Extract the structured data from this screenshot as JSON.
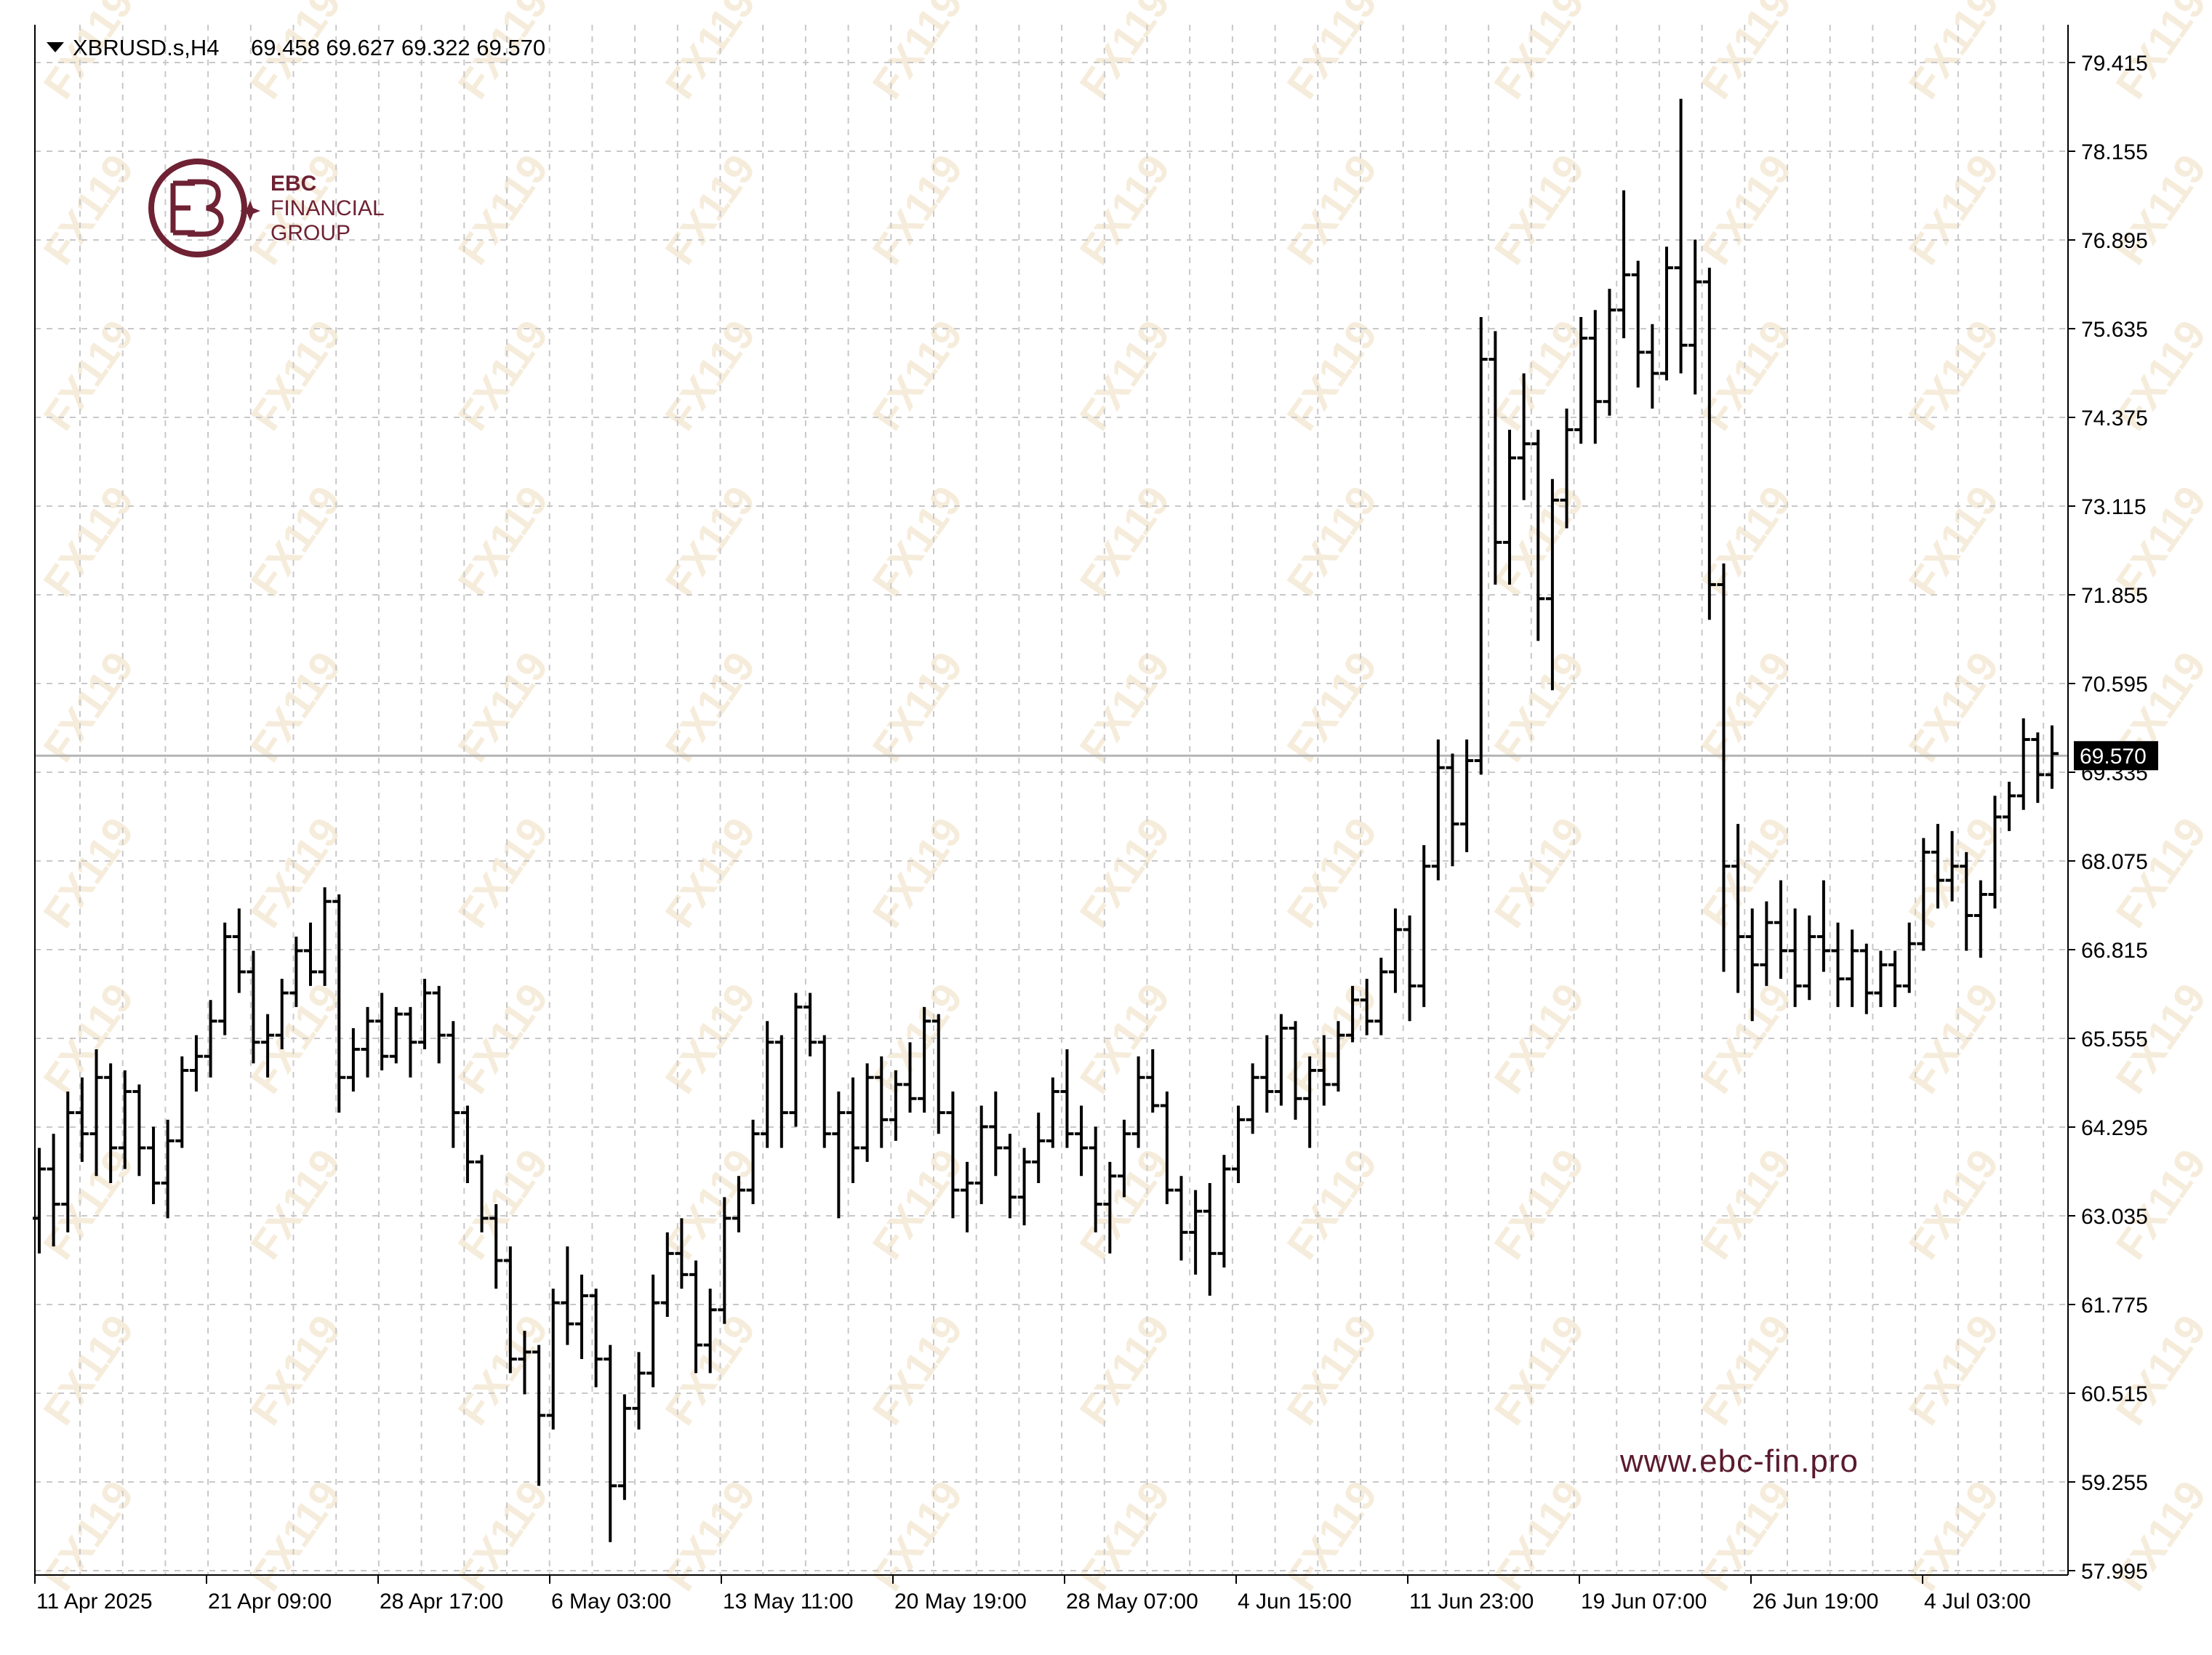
{
  "header": {
    "symbol": "XBRUSD.s,H4",
    "ohlc": "69.458 69.627 69.322 69.570"
  },
  "logo": {
    "line1": "EBC",
    "line2": "FINANCIAL",
    "line3": "GROUP"
  },
  "website": "www.ebc-fin.pro",
  "watermark_text": "FX119",
  "colors": {
    "bars": "#000000",
    "grid": "#c8c8c8",
    "price_line": "#b4b4b4",
    "brand": "#6e2234",
    "watermark": "#f3e6cf"
  },
  "chart_data": {
    "type": "ohlc-bar",
    "symbol": "XBRUSD.s",
    "timeframe": "H4",
    "y_ticks": [
      "79.415",
      "78.155",
      "76.895",
      "75.635",
      "74.375",
      "73.115",
      "71.855",
      "70.595",
      "69.335",
      "68.075",
      "66.815",
      "65.555",
      "64.295",
      "63.035",
      "61.775",
      "60.515",
      "59.255",
      "57.995"
    ],
    "ylim": [
      57.995,
      79.415
    ],
    "x_ticks": [
      "11 Apr 2025",
      "21 Apr 09:00",
      "28 Apr 17:00",
      "6 May 03:00",
      "13 May 11:00",
      "20 May 19:00",
      "28 May 07:00",
      "4 Jun 15:00",
      "11 Jun 23:00",
      "19 Jun 07:00",
      "26 Jun 19:00",
      "4 Jul 03:00"
    ],
    "current_price": "69.570",
    "bars": [
      {
        "o": 63.0,
        "h": 64.0,
        "l": 62.5,
        "c": 63.7
      },
      {
        "o": 63.7,
        "h": 64.2,
        "l": 62.6,
        "c": 63.2
      },
      {
        "o": 63.2,
        "h": 64.8,
        "l": 62.8,
        "c": 64.5
      },
      {
        "o": 64.5,
        "h": 65.0,
        "l": 63.8,
        "c": 64.2
      },
      {
        "o": 64.2,
        "h": 65.4,
        "l": 63.6,
        "c": 65.0
      },
      {
        "o": 65.0,
        "h": 65.2,
        "l": 63.5,
        "c": 64.0
      },
      {
        "o": 64.0,
        "h": 65.1,
        "l": 63.7,
        "c": 64.8
      },
      {
        "o": 64.8,
        "h": 64.9,
        "l": 63.6,
        "c": 64.0
      },
      {
        "o": 64.0,
        "h": 64.3,
        "l": 63.2,
        "c": 63.5
      },
      {
        "o": 63.5,
        "h": 64.4,
        "l": 63.0,
        "c": 64.1
      },
      {
        "o": 64.1,
        "h": 65.3,
        "l": 64.0,
        "c": 65.1
      },
      {
        "o": 65.1,
        "h": 65.6,
        "l": 64.8,
        "c": 65.3
      },
      {
        "o": 65.3,
        "h": 66.1,
        "l": 65.0,
        "c": 65.8
      },
      {
        "o": 65.8,
        "h": 67.2,
        "l": 65.6,
        "c": 67.0
      },
      {
        "o": 67.0,
        "h": 67.4,
        "l": 66.2,
        "c": 66.5
      },
      {
        "o": 66.5,
        "h": 66.8,
        "l": 65.2,
        "c": 65.5
      },
      {
        "o": 65.5,
        "h": 65.9,
        "l": 65.0,
        "c": 65.6
      },
      {
        "o": 65.6,
        "h": 66.4,
        "l": 65.4,
        "c": 66.2
      },
      {
        "o": 66.2,
        "h": 67.0,
        "l": 66.0,
        "c": 66.8
      },
      {
        "o": 66.8,
        "h": 67.2,
        "l": 66.3,
        "c": 66.5
      },
      {
        "o": 66.5,
        "h": 67.7,
        "l": 66.3,
        "c": 67.5
      },
      {
        "o": 67.5,
        "h": 67.6,
        "l": 64.5,
        "c": 65.0
      },
      {
        "o": 65.0,
        "h": 65.7,
        "l": 64.8,
        "c": 65.4
      },
      {
        "o": 65.4,
        "h": 66.0,
        "l": 65.0,
        "c": 65.8
      },
      {
        "o": 65.8,
        "h": 66.2,
        "l": 65.1,
        "c": 65.3
      },
      {
        "o": 65.3,
        "h": 66.0,
        "l": 65.2,
        "c": 65.9
      },
      {
        "o": 65.9,
        "h": 66.0,
        "l": 65.0,
        "c": 65.5
      },
      {
        "o": 65.5,
        "h": 66.4,
        "l": 65.4,
        "c": 66.2
      },
      {
        "o": 66.2,
        "h": 66.3,
        "l": 65.2,
        "c": 65.6
      },
      {
        "o": 65.6,
        "h": 65.8,
        "l": 64.0,
        "c": 64.5
      },
      {
        "o": 64.5,
        "h": 64.6,
        "l": 63.5,
        "c": 63.8
      },
      {
        "o": 63.8,
        "h": 63.9,
        "l": 62.8,
        "c": 63.0
      },
      {
        "o": 63.0,
        "h": 63.2,
        "l": 62.0,
        "c": 62.4
      },
      {
        "o": 62.4,
        "h": 62.6,
        "l": 60.8,
        "c": 61.0
      },
      {
        "o": 61.0,
        "h": 61.4,
        "l": 60.5,
        "c": 61.1
      },
      {
        "o": 61.1,
        "h": 61.2,
        "l": 59.2,
        "c": 60.2
      },
      {
        "o": 60.2,
        "h": 62.0,
        "l": 60.0,
        "c": 61.8
      },
      {
        "o": 61.8,
        "h": 62.6,
        "l": 61.2,
        "c": 61.5
      },
      {
        "o": 61.5,
        "h": 62.2,
        "l": 61.0,
        "c": 61.9
      },
      {
        "o": 61.9,
        "h": 62.0,
        "l": 60.6,
        "c": 61.0
      },
      {
        "o": 61.0,
        "h": 61.2,
        "l": 58.4,
        "c": 59.2
      },
      {
        "o": 59.2,
        "h": 60.5,
        "l": 59.0,
        "c": 60.3
      },
      {
        "o": 60.3,
        "h": 61.1,
        "l": 60.0,
        "c": 60.8
      },
      {
        "o": 60.8,
        "h": 62.2,
        "l": 60.6,
        "c": 61.8
      },
      {
        "o": 61.8,
        "h": 62.8,
        "l": 61.6,
        "c": 62.5
      },
      {
        "o": 62.5,
        "h": 63.0,
        "l": 62.0,
        "c": 62.2
      },
      {
        "o": 62.2,
        "h": 62.4,
        "l": 60.8,
        "c": 61.2
      },
      {
        "o": 61.2,
        "h": 62.0,
        "l": 60.8,
        "c": 61.7
      },
      {
        "o": 61.7,
        "h": 63.3,
        "l": 61.5,
        "c": 63.0
      },
      {
        "o": 63.0,
        "h": 63.6,
        "l": 62.8,
        "c": 63.4
      },
      {
        "o": 63.4,
        "h": 64.4,
        "l": 63.2,
        "c": 64.2
      },
      {
        "o": 64.2,
        "h": 65.8,
        "l": 64.0,
        "c": 65.5
      },
      {
        "o": 65.5,
        "h": 65.6,
        "l": 64.0,
        "c": 64.5
      },
      {
        "o": 64.5,
        "h": 66.2,
        "l": 64.3,
        "c": 66.0
      },
      {
        "o": 66.0,
        "h": 66.2,
        "l": 65.3,
        "c": 65.5
      },
      {
        "o": 65.5,
        "h": 65.6,
        "l": 64.0,
        "c": 64.2
      },
      {
        "o": 64.2,
        "h": 64.8,
        "l": 63.0,
        "c": 64.5
      },
      {
        "o": 64.5,
        "h": 65.0,
        "l": 63.5,
        "c": 64.0
      },
      {
        "o": 64.0,
        "h": 65.2,
        "l": 63.8,
        "c": 65.0
      },
      {
        "o": 65.0,
        "h": 65.3,
        "l": 64.0,
        "c": 64.4
      },
      {
        "o": 64.4,
        "h": 65.1,
        "l": 64.1,
        "c": 64.9
      },
      {
        "o": 64.9,
        "h": 65.5,
        "l": 64.5,
        "c": 64.7
      },
      {
        "o": 64.7,
        "h": 66.0,
        "l": 64.5,
        "c": 65.8
      },
      {
        "o": 65.8,
        "h": 65.9,
        "l": 64.2,
        "c": 64.5
      },
      {
        "o": 64.5,
        "h": 64.8,
        "l": 63.0,
        "c": 63.4
      },
      {
        "o": 63.4,
        "h": 63.8,
        "l": 62.8,
        "c": 63.5
      },
      {
        "o": 63.5,
        "h": 64.6,
        "l": 63.2,
        "c": 64.3
      },
      {
        "o": 64.3,
        "h": 64.8,
        "l": 63.6,
        "c": 64.0
      },
      {
        "o": 64.0,
        "h": 64.2,
        "l": 63.0,
        "c": 63.3
      },
      {
        "o": 63.3,
        "h": 64.0,
        "l": 62.9,
        "c": 63.8
      },
      {
        "o": 63.8,
        "h": 64.5,
        "l": 63.5,
        "c": 64.1
      },
      {
        "o": 64.1,
        "h": 65.0,
        "l": 64.0,
        "c": 64.8
      },
      {
        "o": 64.8,
        "h": 65.4,
        "l": 64.0,
        "c": 64.2
      },
      {
        "o": 64.2,
        "h": 64.6,
        "l": 63.6,
        "c": 64.0
      },
      {
        "o": 64.0,
        "h": 64.3,
        "l": 62.8,
        "c": 63.2
      },
      {
        "o": 63.2,
        "h": 63.8,
        "l": 62.5,
        "c": 63.6
      },
      {
        "o": 63.6,
        "h": 64.4,
        "l": 63.3,
        "c": 64.2
      },
      {
        "o": 64.2,
        "h": 65.3,
        "l": 64.0,
        "c": 65.0
      },
      {
        "o": 65.0,
        "h": 65.4,
        "l": 64.5,
        "c": 64.6
      },
      {
        "o": 64.6,
        "h": 64.8,
        "l": 63.2,
        "c": 63.4
      },
      {
        "o": 63.4,
        "h": 63.6,
        "l": 62.4,
        "c": 62.8
      },
      {
        "o": 62.8,
        "h": 63.4,
        "l": 62.2,
        "c": 63.1
      },
      {
        "o": 63.1,
        "h": 63.5,
        "l": 61.9,
        "c": 62.5
      },
      {
        "o": 62.5,
        "h": 63.9,
        "l": 62.3,
        "c": 63.7
      },
      {
        "o": 63.7,
        "h": 64.6,
        "l": 63.5,
        "c": 64.4
      },
      {
        "o": 64.4,
        "h": 65.2,
        "l": 64.2,
        "c": 65.0
      },
      {
        "o": 65.0,
        "h": 65.6,
        "l": 64.5,
        "c": 64.8
      },
      {
        "o": 64.8,
        "h": 65.9,
        "l": 64.6,
        "c": 65.7
      },
      {
        "o": 65.7,
        "h": 65.8,
        "l": 64.4,
        "c": 64.7
      },
      {
        "o": 64.7,
        "h": 65.3,
        "l": 64.0,
        "c": 65.1
      },
      {
        "o": 65.1,
        "h": 65.6,
        "l": 64.6,
        "c": 64.9
      },
      {
        "o": 64.9,
        "h": 65.8,
        "l": 64.8,
        "c": 65.6
      },
      {
        "o": 65.6,
        "h": 66.3,
        "l": 65.5,
        "c": 66.1
      },
      {
        "o": 66.1,
        "h": 66.4,
        "l": 65.6,
        "c": 65.8
      },
      {
        "o": 65.8,
        "h": 66.7,
        "l": 65.6,
        "c": 66.5
      },
      {
        "o": 66.5,
        "h": 67.4,
        "l": 66.2,
        "c": 67.1
      },
      {
        "o": 67.1,
        "h": 67.3,
        "l": 65.8,
        "c": 66.3
      },
      {
        "o": 66.3,
        "h": 68.3,
        "l": 66.0,
        "c": 68.0
      },
      {
        "o": 68.0,
        "h": 69.8,
        "l": 67.8,
        "c": 69.4
      },
      {
        "o": 69.4,
        "h": 69.6,
        "l": 68.0,
        "c": 68.6
      },
      {
        "o": 68.6,
        "h": 69.8,
        "l": 68.2,
        "c": 69.5
      },
      {
        "o": 69.5,
        "h": 75.8,
        "l": 69.3,
        "c": 75.2
      },
      {
        "o": 75.2,
        "h": 75.6,
        "l": 72.0,
        "c": 72.6
      },
      {
        "o": 72.6,
        "h": 74.2,
        "l": 72.0,
        "c": 73.8
      },
      {
        "o": 73.8,
        "h": 75.0,
        "l": 73.2,
        "c": 74.0
      },
      {
        "o": 74.0,
        "h": 74.2,
        "l": 71.2,
        "c": 71.8
      },
      {
        "o": 71.8,
        "h": 73.5,
        "l": 70.5,
        "c": 73.2
      },
      {
        "o": 73.2,
        "h": 74.5,
        "l": 72.8,
        "c": 74.2
      },
      {
        "o": 74.2,
        "h": 75.8,
        "l": 74.0,
        "c": 75.5
      },
      {
        "o": 75.5,
        "h": 75.9,
        "l": 74.0,
        "c": 74.6
      },
      {
        "o": 74.6,
        "h": 76.2,
        "l": 74.4,
        "c": 75.9
      },
      {
        "o": 75.9,
        "h": 77.6,
        "l": 75.5,
        "c": 76.4
      },
      {
        "o": 76.4,
        "h": 76.6,
        "l": 74.8,
        "c": 75.3
      },
      {
        "o": 75.3,
        "h": 75.7,
        "l": 74.5,
        "c": 75.0
      },
      {
        "o": 75.0,
        "h": 76.8,
        "l": 74.9,
        "c": 76.5
      },
      {
        "o": 76.5,
        "h": 78.9,
        "l": 75.0,
        "c": 75.4
      },
      {
        "o": 75.4,
        "h": 76.9,
        "l": 74.7,
        "c": 76.3
      },
      {
        "o": 76.3,
        "h": 76.5,
        "l": 71.5,
        "c": 72.0
      },
      {
        "o": 72.0,
        "h": 72.3,
        "l": 66.5,
        "c": 68.0
      },
      {
        "o": 68.0,
        "h": 68.6,
        "l": 66.2,
        "c": 67.0
      },
      {
        "o": 67.0,
        "h": 67.4,
        "l": 65.8,
        "c": 66.6
      },
      {
        "o": 66.6,
        "h": 67.5,
        "l": 66.3,
        "c": 67.2
      },
      {
        "o": 67.2,
        "h": 67.8,
        "l": 66.4,
        "c": 66.8
      },
      {
        "o": 66.8,
        "h": 67.4,
        "l": 66.0,
        "c": 66.3
      },
      {
        "o": 66.3,
        "h": 67.3,
        "l": 66.1,
        "c": 67.0
      },
      {
        "o": 67.0,
        "h": 67.8,
        "l": 66.5,
        "c": 66.8
      },
      {
        "o": 66.8,
        "h": 67.2,
        "l": 66.0,
        "c": 66.4
      },
      {
        "o": 66.4,
        "h": 67.1,
        "l": 66.0,
        "c": 66.8
      },
      {
        "o": 66.8,
        "h": 66.9,
        "l": 65.9,
        "c": 66.2
      },
      {
        "o": 66.2,
        "h": 66.8,
        "l": 66.0,
        "c": 66.6
      },
      {
        "o": 66.6,
        "h": 66.8,
        "l": 66.0,
        "c": 66.3
      },
      {
        "o": 66.3,
        "h": 67.2,
        "l": 66.2,
        "c": 66.9
      },
      {
        "o": 66.9,
        "h": 68.4,
        "l": 66.8,
        "c": 68.2
      },
      {
        "o": 68.2,
        "h": 68.6,
        "l": 67.4,
        "c": 67.8
      },
      {
        "o": 67.8,
        "h": 68.5,
        "l": 67.5,
        "c": 68.0
      },
      {
        "o": 68.0,
        "h": 68.2,
        "l": 66.8,
        "c": 67.3
      },
      {
        "o": 67.3,
        "h": 67.8,
        "l": 66.7,
        "c": 67.6
      },
      {
        "o": 67.6,
        "h": 69.0,
        "l": 67.4,
        "c": 68.7
      },
      {
        "o": 68.7,
        "h": 69.2,
        "l": 68.5,
        "c": 69.0
      },
      {
        "o": 69.0,
        "h": 70.1,
        "l": 68.8,
        "c": 69.8
      },
      {
        "o": 69.8,
        "h": 69.9,
        "l": 68.9,
        "c": 69.3
      },
      {
        "o": 69.3,
        "h": 70.0,
        "l": 69.1,
        "c": 69.6
      }
    ]
  }
}
